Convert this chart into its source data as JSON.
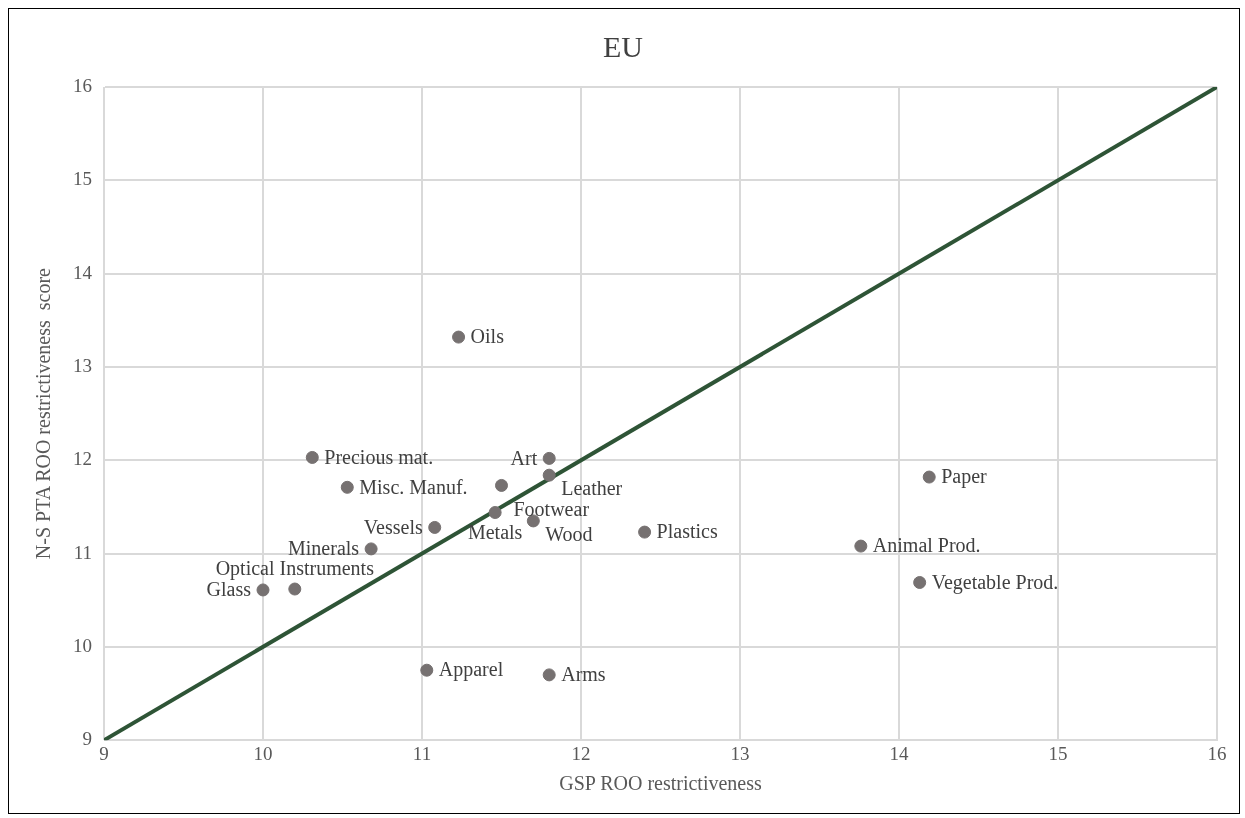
{
  "chart_data": {
    "type": "scatter",
    "title": "EU",
    "xlabel": "GSP ROO restrictiveness",
    "ylabel": "N-S PTA ROO restrictiveness  score",
    "xlim": [
      9,
      16
    ],
    "xticks": [
      9,
      10,
      11,
      12,
      13,
      14,
      15,
      16
    ],
    "ylim": [
      9,
      16
    ],
    "yticks": [
      9,
      10,
      11,
      12,
      13,
      14,
      15,
      16
    ],
    "grid": true,
    "legend": false,
    "marker": "circle",
    "series": [
      {
        "type": "line",
        "color": "#2e5436",
        "x": [
          9,
          16
        ],
        "values": [
          9,
          16
        ],
        "marker": "none"
      },
      {
        "type": "scatter",
        "color": "#767171",
        "x": [
          11.23,
          10.31,
          10.53,
          11.8,
          11.8,
          11.5,
          11.46,
          11.7,
          11.08,
          10.68,
          10.0,
          10.2,
          11.03,
          11.8,
          12.4,
          14.19,
          13.76,
          14.13
        ],
        "values": [
          13.32,
          12.03,
          11.71,
          12.02,
          11.84,
          11.73,
          11.44,
          11.35,
          11.28,
          11.05,
          10.61,
          10.62,
          9.75,
          9.7,
          11.23,
          11.82,
          11.08,
          10.69
        ],
        "value_labels": [
          "Oils",
          "Precious mat.",
          "Misc. Manuf.",
          "Art",
          "Leather",
          "Footwear",
          "Metals",
          "Wood",
          "Vessels",
          "Minerals",
          "Glass",
          "Optical Instruments",
          "Apparel",
          "Arms",
          "Plastics",
          "Paper",
          "Animal Prod.",
          "Vegetable Prod."
        ]
      }
    ]
  }
}
